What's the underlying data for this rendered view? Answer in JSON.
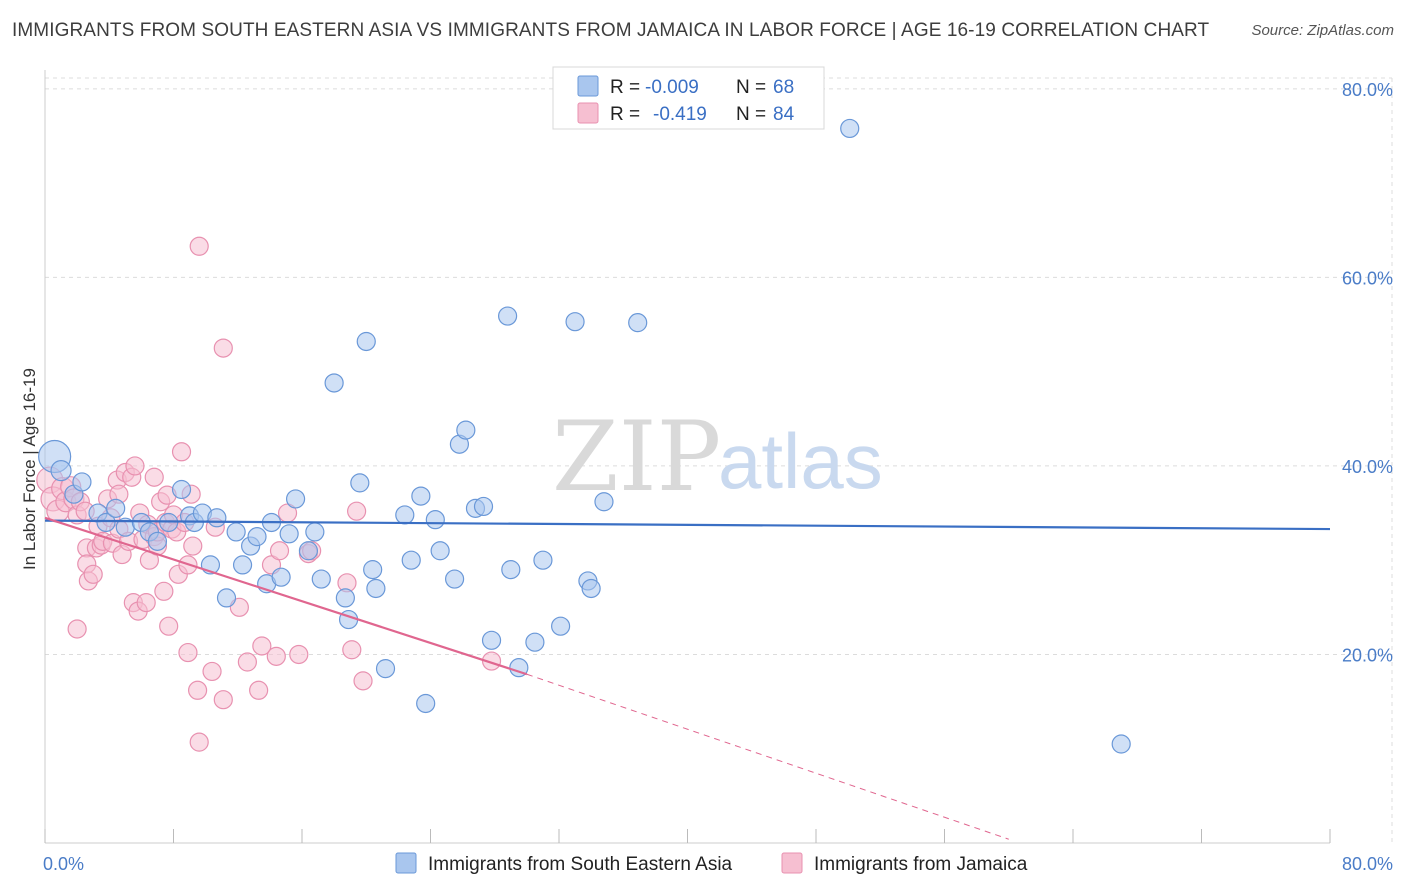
{
  "header": {
    "title": "IMMIGRANTS FROM SOUTH EASTERN ASIA VS IMMIGRANTS FROM JAMAICA IN LABOR FORCE | AGE 16-19 CORRELATION CHART",
    "source": "Source: ZipAtlas.com"
  },
  "watermark": {
    "zip": "ZIP",
    "atlas": "atlas"
  },
  "legend": {
    "r_label": "R =",
    "n_label": "N =",
    "rows": [
      {
        "r": "-0.009",
        "n": "68",
        "color": "#4a7cc7"
      },
      {
        "r": "-0.419",
        "n": "84",
        "color": "#e07aa0"
      }
    ]
  },
  "colors": {
    "blue_fill": "#a9c6ee",
    "blue_stroke": "#6a98d8",
    "blue_line": "#3a6fc4",
    "pink_fill": "#f6bfd1",
    "pink_stroke": "#e891b0",
    "pink_line": "#e0668f",
    "grid": "#dcdcdc",
    "axis_label": "#4a7cc7"
  },
  "chart_data": {
    "type": "scatter",
    "title": "IMMIGRANTS FROM SOUTH EASTERN ASIA VS IMMIGRANTS FROM JAMAICA IN LABOR FORCE | AGE 16-19 CORRELATION CHART",
    "xlabel": "",
    "ylabel": "In Labor Force | Age 16-19",
    "xlim": [
      0,
      80
    ],
    "ylim": [
      0,
      82
    ],
    "x_tick_labels": [
      "0.0%",
      "80.0%"
    ],
    "y_ticks": [
      20,
      40,
      60,
      80
    ],
    "y_tick_labels": [
      "20.0%",
      "40.0%",
      "60.0%",
      "80.0%"
    ],
    "grid": true,
    "series": [
      {
        "name": "Immigrants from South Eastern Asia",
        "color": "#4a7cc7",
        "r": -0.009,
        "n": 68,
        "trend": {
          "x": [
            0,
            80
          ],
          "y": [
            34.2,
            33.3
          ],
          "dashed_extension": false
        },
        "points": [
          [
            0.6,
            41.0,
            16
          ],
          [
            1.0,
            39.5,
            10
          ],
          [
            1.8,
            37.0,
            9
          ],
          [
            2.3,
            38.3,
            9
          ],
          [
            3.3,
            35.0,
            9
          ],
          [
            3.8,
            34.0,
            9
          ],
          [
            4.4,
            35.5,
            9
          ],
          [
            5.0,
            33.5,
            9
          ],
          [
            6.0,
            34.0,
            9
          ],
          [
            6.5,
            33.0,
            9
          ],
          [
            7.0,
            32.0,
            9
          ],
          [
            7.7,
            34.0,
            9
          ],
          [
            8.5,
            37.5,
            9
          ],
          [
            9.0,
            34.7,
            9
          ],
          [
            9.3,
            34.0,
            9
          ],
          [
            9.8,
            35.0,
            9
          ],
          [
            10.3,
            29.5,
            9
          ],
          [
            10.7,
            34.5,
            9
          ],
          [
            11.3,
            26.0,
            9
          ],
          [
            11.9,
            33.0,
            9
          ],
          [
            12.3,
            29.5,
            9
          ],
          [
            12.8,
            31.5,
            9
          ],
          [
            13.2,
            32.5,
            9
          ],
          [
            13.8,
            27.5,
            9
          ],
          [
            14.1,
            34.0,
            9
          ],
          [
            14.7,
            28.2,
            9
          ],
          [
            15.2,
            32.8,
            9
          ],
          [
            15.6,
            36.5,
            9
          ],
          [
            16.4,
            31.0,
            9
          ],
          [
            16.8,
            33.0,
            9
          ],
          [
            17.2,
            28.0,
            9
          ],
          [
            18.0,
            48.8,
            9
          ],
          [
            18.7,
            26.0,
            9
          ],
          [
            18.9,
            23.7,
            9
          ],
          [
            19.6,
            38.2,
            9
          ],
          [
            20.0,
            53.2,
            9
          ],
          [
            20.4,
            29.0,
            9
          ],
          [
            20.6,
            27.0,
            9
          ],
          [
            21.2,
            18.5,
            9
          ],
          [
            22.4,
            34.8,
            9
          ],
          [
            22.8,
            30.0,
            9
          ],
          [
            23.4,
            36.8,
            9
          ],
          [
            23.7,
            14.8,
            9
          ],
          [
            24.3,
            34.3,
            9
          ],
          [
            24.6,
            31.0,
            9
          ],
          [
            25.5,
            28.0,
            9
          ],
          [
            25.8,
            42.3,
            9
          ],
          [
            26.2,
            43.8,
            9
          ],
          [
            26.8,
            35.5,
            9
          ],
          [
            27.3,
            35.7,
            9
          ],
          [
            27.8,
            21.5,
            9
          ],
          [
            28.8,
            55.9,
            9
          ],
          [
            29.0,
            29.0,
            9
          ],
          [
            29.5,
            18.6,
            9
          ],
          [
            30.5,
            21.3,
            9
          ],
          [
            31.0,
            30.0,
            9
          ],
          [
            32.1,
            23.0,
            9
          ],
          [
            33.0,
            55.3,
            9
          ],
          [
            33.8,
            27.8,
            9
          ],
          [
            34.0,
            27.0,
            9
          ],
          [
            34.8,
            36.2,
            9
          ],
          [
            36.9,
            55.2,
            9
          ],
          [
            50.1,
            75.8,
            9
          ],
          [
            67.0,
            10.5,
            9
          ]
        ]
      },
      {
        "name": "Immigrants from Jamaica",
        "color": "#e07aa0",
        "r": -0.419,
        "n": 84,
        "trend": {
          "x": [
            0,
            30
          ],
          "y": [
            34.5,
            17.9
          ],
          "dashed_to": [
            60,
            0.4
          ]
        },
        "points": [
          [
            0.3,
            38.5,
            13
          ],
          [
            0.5,
            36.5,
            12
          ],
          [
            0.8,
            35.2,
            11
          ],
          [
            1.1,
            37.6,
            11
          ],
          [
            1.3,
            36.2,
            10
          ],
          [
            1.6,
            37.8,
            10
          ],
          [
            1.8,
            36.5,
            10
          ],
          [
            2.0,
            34.8,
            9
          ],
          [
            2.2,
            36.2,
            9
          ],
          [
            2.5,
            35.2,
            9
          ],
          [
            2.0,
            22.7,
            9
          ],
          [
            2.6,
            31.3,
            9
          ],
          [
            2.6,
            29.6,
            9
          ],
          [
            2.7,
            27.8,
            9
          ],
          [
            3.0,
            28.5,
            9
          ],
          [
            3.3,
            33.6,
            9
          ],
          [
            3.2,
            31.3,
            9
          ],
          [
            3.5,
            31.6,
            9
          ],
          [
            3.6,
            32.0,
            9
          ],
          [
            3.9,
            36.5,
            9
          ],
          [
            4.1,
            34.5,
            9
          ],
          [
            4.2,
            31.8,
            9
          ],
          [
            4.5,
            38.5,
            9
          ],
          [
            4.6,
            37.0,
            9
          ],
          [
            4.6,
            33.3,
            9
          ],
          [
            4.8,
            30.6,
            9
          ],
          [
            5.0,
            39.3,
            9
          ],
          [
            5.2,
            32.0,
            9
          ],
          [
            5.4,
            38.8,
            9
          ],
          [
            5.5,
            25.5,
            9
          ],
          [
            5.6,
            40.0,
            9
          ],
          [
            5.8,
            24.6,
            9
          ],
          [
            5.9,
            35.0,
            9
          ],
          [
            6.1,
            32.2,
            9
          ],
          [
            6.3,
            25.5,
            9
          ],
          [
            6.4,
            33.8,
            9
          ],
          [
            6.5,
            30.0,
            9
          ],
          [
            6.8,
            38.8,
            9
          ],
          [
            6.8,
            32.5,
            9
          ],
          [
            7.0,
            31.5,
            9
          ],
          [
            7.0,
            33.0,
            9
          ],
          [
            7.2,
            36.2,
            9
          ],
          [
            7.4,
            26.7,
            9
          ],
          [
            7.6,
            36.9,
            9
          ],
          [
            7.5,
            34.0,
            9
          ],
          [
            7.7,
            23.0,
            9
          ],
          [
            7.9,
            33.3,
            9
          ],
          [
            8.0,
            34.8,
            9
          ],
          [
            8.2,
            33.0,
            9
          ],
          [
            8.3,
            28.5,
            9
          ],
          [
            8.5,
            41.5,
            9
          ],
          [
            8.7,
            34.0,
            9
          ],
          [
            8.9,
            29.5,
            9
          ],
          [
            8.9,
            20.2,
            9
          ],
          [
            9.1,
            37.0,
            9
          ],
          [
            9.2,
            31.5,
            9
          ],
          [
            9.5,
            16.2,
            9
          ],
          [
            9.6,
            63.3,
            9
          ],
          [
            9.6,
            10.7,
            9
          ],
          [
            10.4,
            18.2,
            9
          ],
          [
            10.6,
            33.5,
            9
          ],
          [
            11.1,
            15.2,
            9
          ],
          [
            11.1,
            52.5,
            9
          ],
          [
            12.1,
            25.0,
            9
          ],
          [
            12.6,
            19.2,
            9
          ],
          [
            13.3,
            16.2,
            9
          ],
          [
            13.5,
            20.9,
            9
          ],
          [
            14.1,
            29.5,
            9
          ],
          [
            14.4,
            19.8,
            9
          ],
          [
            14.6,
            31.0,
            9
          ],
          [
            15.1,
            35.0,
            9
          ],
          [
            15.8,
            20.0,
            9
          ],
          [
            16.4,
            30.7,
            9
          ],
          [
            16.6,
            31.0,
            9
          ],
          [
            18.8,
            27.6,
            9
          ],
          [
            19.1,
            20.5,
            9
          ],
          [
            19.4,
            35.2,
            9
          ],
          [
            19.8,
            17.2,
            9
          ],
          [
            27.8,
            19.3,
            9
          ]
        ]
      }
    ]
  },
  "bottom_legend": {
    "items": [
      {
        "label": "Immigrants from South Eastern Asia"
      },
      {
        "label": "Immigrants from Jamaica"
      }
    ]
  }
}
